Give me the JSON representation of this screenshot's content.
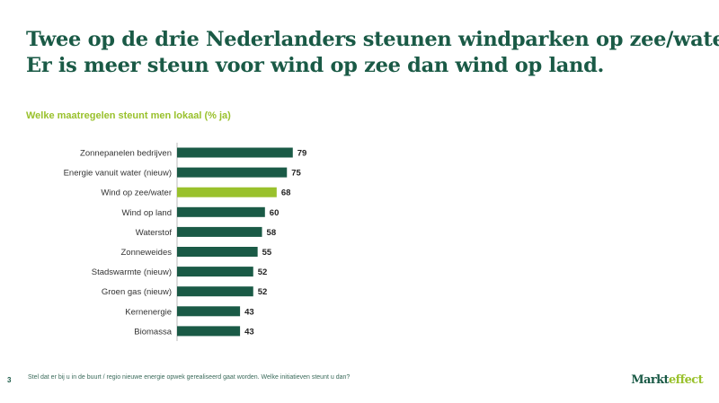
{
  "title": {
    "line1": "Twee op de drie Nederlanders steunen windparken op zee/water.",
    "line2": "Er is meer steun voor wind op zee dan wind op land."
  },
  "subtitle": "Welke maatregelen steunt men lokaal (% ja)",
  "colors": {
    "title": "#1a5a46",
    "bar": "#1a5a46",
    "highlight": "#99c12c",
    "label": "#333333",
    "axis": "#bbbbbb"
  },
  "chart_data": {
    "type": "bar",
    "orientation": "horizontal",
    "categories": [
      "Zonnepanelen bedrijven",
      "Energie vanuit water (nieuw)",
      "Wind op zee/water",
      "Wind op land",
      "Waterstof",
      "Zonneweides",
      "Stadswarmte (nieuw)",
      "Groen gas (nieuw)",
      "Kernenergie",
      "Biomassa"
    ],
    "values": [
      79,
      75,
      68,
      60,
      58,
      55,
      52,
      52,
      43,
      43
    ],
    "highlight_index": 2,
    "xlim": [
      0,
      100
    ],
    "grid": false,
    "data_labels": true
  },
  "footer": {
    "page_number": "3",
    "note": "Stel dat er bij u in de buurt / regio nieuwe energie opwek gerealiseerd gaat worden. Welke initiatieven steunt u dan?",
    "logo_part1": "Markt",
    "logo_part2": "effect"
  }
}
